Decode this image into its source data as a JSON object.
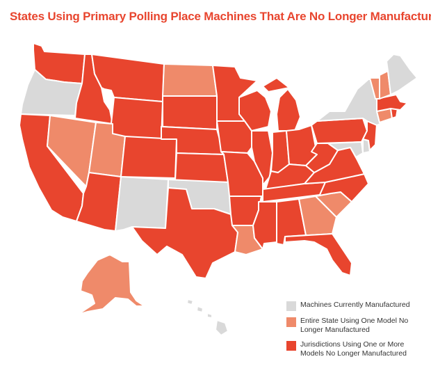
{
  "title": "States Using Primary Polling Place Machines That Are No Longer Manufactured",
  "colors": {
    "title": "#e8452e",
    "manufactured": "#d9d9d9",
    "entire_state": "#ef8a6a",
    "jurisdictions": "#e8452e",
    "border": "#ffffff"
  },
  "legend": {
    "placement": "bottom-right",
    "items": [
      {
        "key": "manufactured",
        "label": "Machines Currently Manufactured"
      },
      {
        "key": "entire_state",
        "label": "Entire State Using One Model No Longer Manufactured"
      },
      {
        "key": "jurisdictions",
        "label": "Jurisdictions Using One or More Models No Longer Manufactured"
      }
    ]
  },
  "map_data": {
    "type": "choropleth",
    "region": "United States",
    "categories": {
      "manufactured": [
        "OR",
        "NM",
        "OK",
        "NY",
        "ME",
        "MD",
        "DE",
        "HI"
      ],
      "entire_state": [
        "NV",
        "UT",
        "ND",
        "LA",
        "GA",
        "SC",
        "AK",
        "VT",
        "NH",
        "CT"
      ],
      "jurisdictions": [
        "WA",
        "ID",
        "MT",
        "WY",
        "CA",
        "AZ",
        "CO",
        "SD",
        "NE",
        "KS",
        "TX",
        "MN",
        "IA",
        "MO",
        "AR",
        "WI",
        "IL",
        "MI",
        "IN",
        "OH",
        "KY",
        "TN",
        "MS",
        "AL",
        "FL",
        "WV",
        "VA",
        "NC",
        "PA",
        "NJ",
        "MA",
        "RI"
      ]
    }
  }
}
